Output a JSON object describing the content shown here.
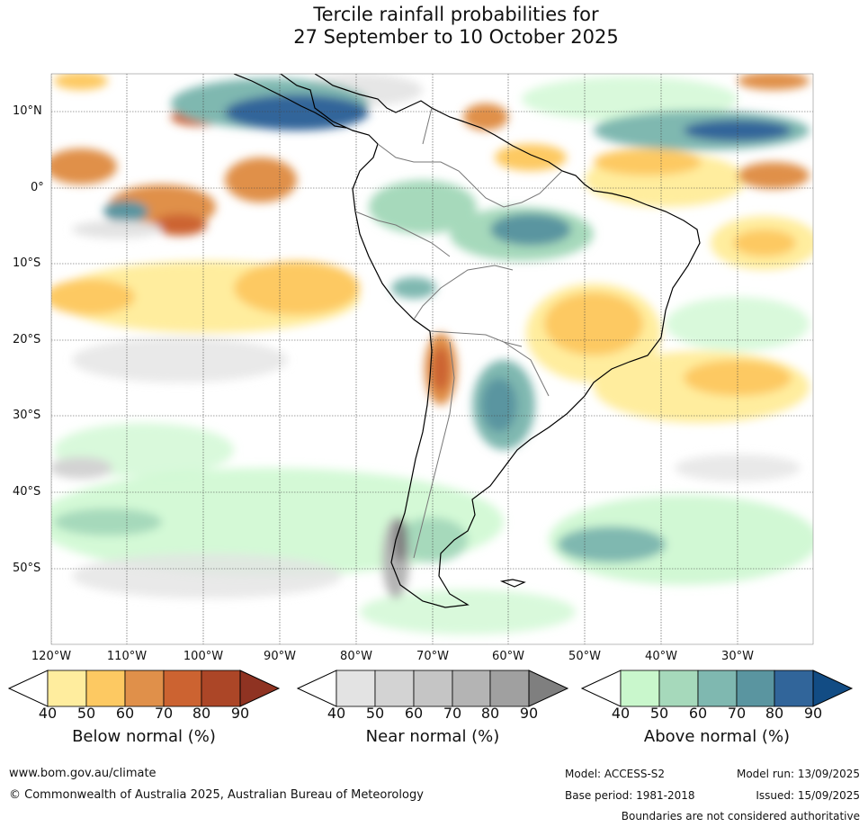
{
  "title": {
    "line1": "Tercile rainfall probabilities for",
    "line2": "27 September to 10 October 2025"
  },
  "axes": {
    "lat_labels": [
      "10°N",
      "0°",
      "10°S",
      "20°S",
      "30°S",
      "40°S",
      "50°S"
    ],
    "lon_labels": [
      "120°W",
      "110°W",
      "100°W",
      "90°W",
      "80°W",
      "70°W",
      "60°W",
      "50°W",
      "40°W",
      "30°W"
    ]
  },
  "colorbars": [
    {
      "label": "Below normal (%)",
      "ticks": [
        "40",
        "50",
        "60",
        "70",
        "80",
        "90"
      ],
      "colors": [
        "#ffed9e",
        "#fdc962",
        "#e0904a",
        "#cc6331",
        "#ac4627",
        "#8f3322"
      ]
    },
    {
      "label": "Near normal (%)",
      "ticks": [
        "40",
        "50",
        "60",
        "70",
        "80",
        "90"
      ],
      "colors": [
        "#e3e3e3",
        "#d3d3d3",
        "#c5c5c5",
        "#b4b4b4",
        "#a0a0a0",
        "#7f7f7f"
      ]
    },
    {
      "label": "Above normal (%)",
      "ticks": [
        "40",
        "50",
        "60",
        "70",
        "80",
        "90"
      ],
      "colors": [
        "#c9f7cc",
        "#a6d9bb",
        "#7fb8b0",
        "#5a95a0",
        "#31659a",
        "#124c84"
      ]
    }
  ],
  "footer": {
    "url": "www.bom.gov.au/climate",
    "copyright": "© Commonwealth of Australia 2025, Australian Bureau of Meteorology",
    "model": "Model: ACCESS-S2",
    "base_period": "Base period: 1981-2018",
    "model_run": "Model run: 13/09/2025",
    "issued": "Issued: 15/09/2025",
    "disclaimer": "Boundaries are not considered authoritative"
  }
}
